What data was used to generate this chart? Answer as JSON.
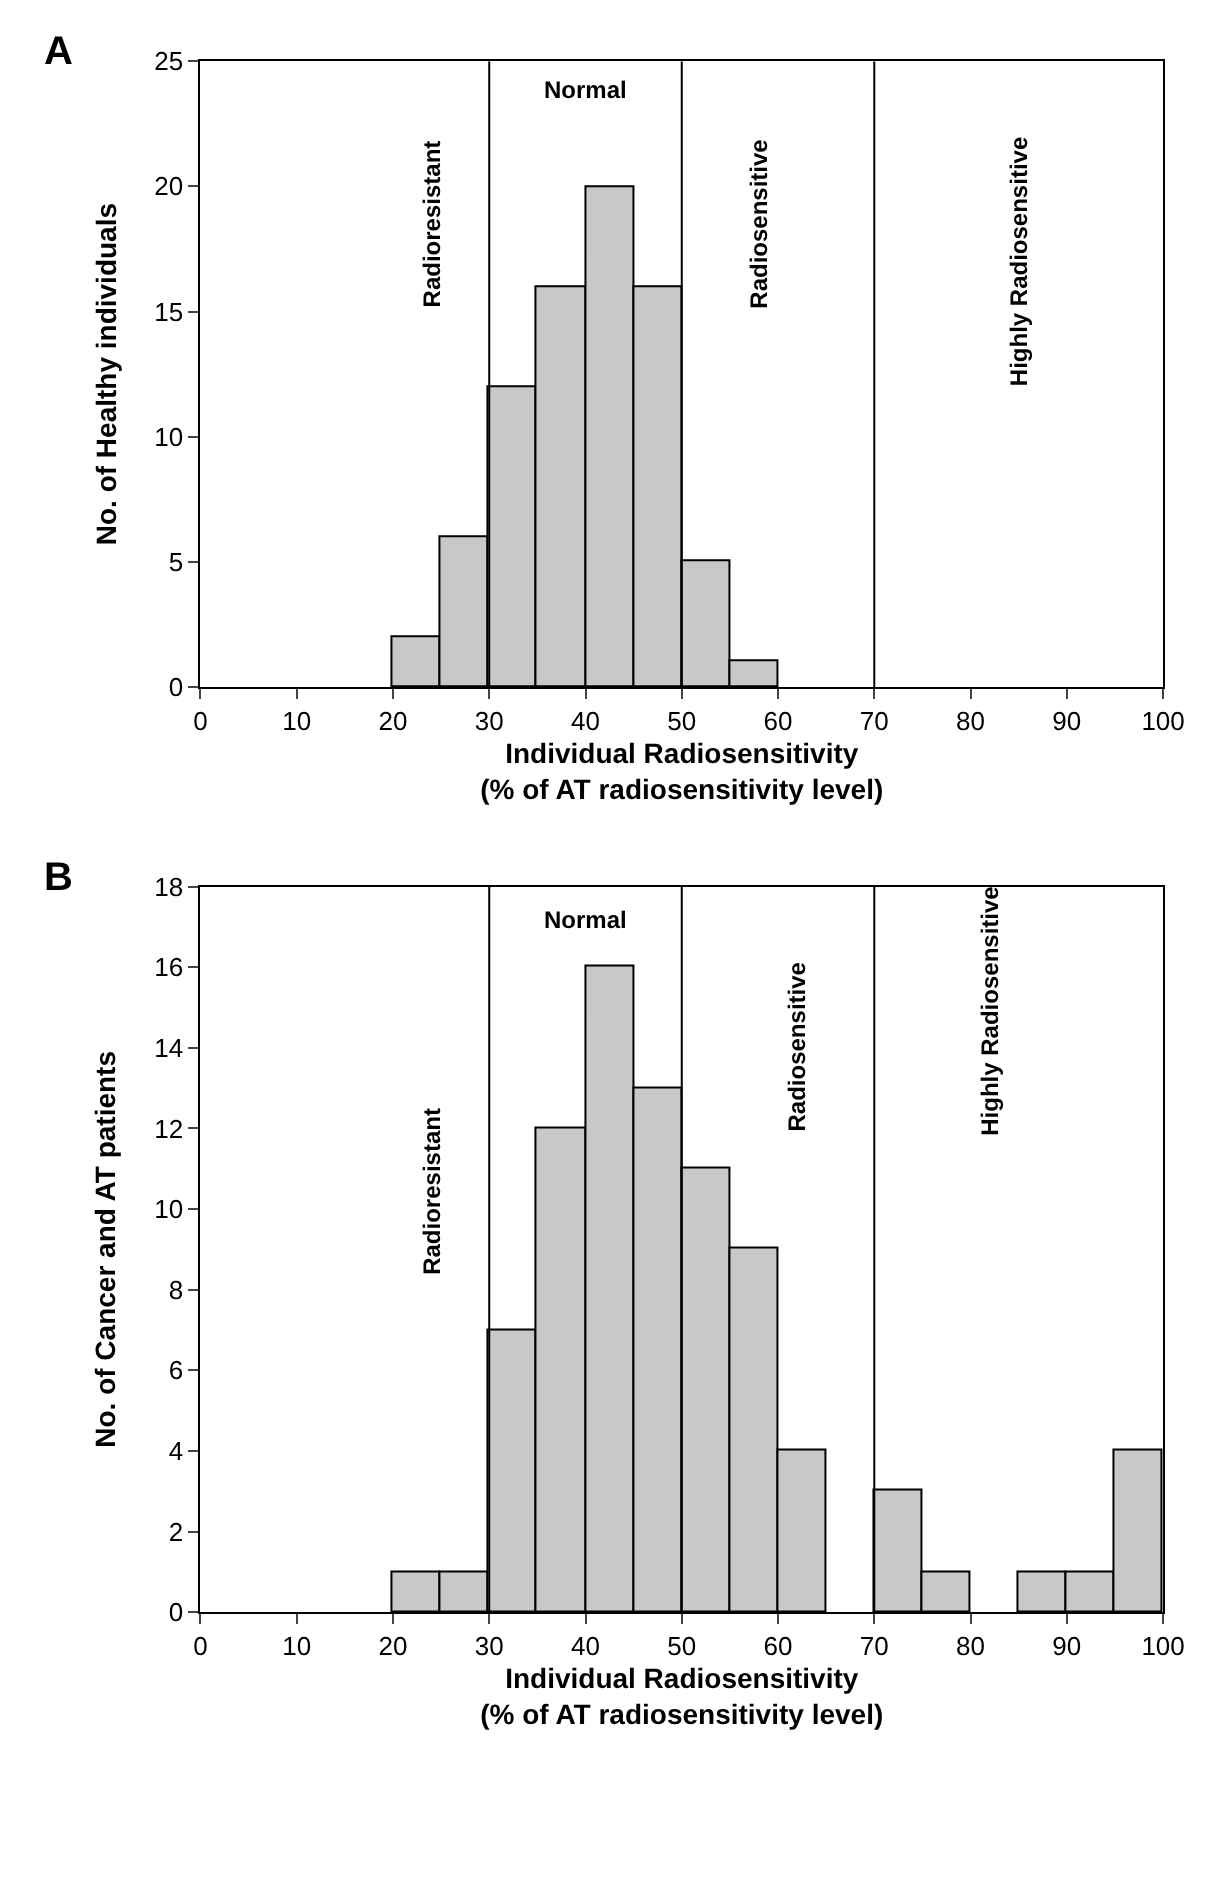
{
  "chart_data": [
    {
      "type": "histogram",
      "title": "A",
      "xlabel": "Individual Radiosensitivity\n(% of AT radiosensitivity level)",
      "ylabel": "No. of Healthy individuals",
      "color": "#c8c8c8",
      "bins": [
        0,
        5,
        10,
        15,
        20,
        25,
        30,
        35,
        40,
        45,
        50,
        55,
        60,
        65,
        70,
        75,
        80,
        85,
        90,
        95,
        100
      ],
      "values": [
        0,
        0,
        0,
        0,
        2,
        6,
        12,
        16,
        20,
        16,
        5,
        1,
        0,
        0,
        0,
        0,
        0,
        0,
        0,
        0
      ],
      "xlim": [
        0,
        100
      ],
      "xticks": [
        0,
        10,
        20,
        30,
        40,
        50,
        60,
        70,
        80,
        90,
        100
      ],
      "ylim": [
        0,
        25
      ],
      "yticks": [
        0,
        5,
        10,
        15,
        20,
        25
      ],
      "ref_lines": [
        {
          "axis": "x",
          "value": 30,
          "color": "#000000"
        },
        {
          "axis": "x",
          "value": 50,
          "color": "#000000"
        },
        {
          "axis": "x",
          "value": 70,
          "color": "#000000"
        }
      ],
      "annotations": [
        "Radioresistant",
        "Normal",
        "Radiosensitive",
        "Highly Radiosensitive"
      ]
    },
    {
      "type": "histogram",
      "title": "B",
      "xlabel": "Individual Radiosensitivity\n(% of AT radiosensitivity level)",
      "ylabel": "No. of Cancer and AT patients",
      "color": "#c8c8c8",
      "bins": [
        0,
        5,
        10,
        15,
        20,
        25,
        30,
        35,
        40,
        45,
        50,
        55,
        60,
        65,
        70,
        75,
        80,
        85,
        90,
        95,
        100
      ],
      "values": [
        0,
        0,
        0,
        0,
        1,
        1,
        7,
        12,
        16,
        13,
        11,
        9,
        4,
        0,
        3,
        1,
        0,
        1,
        1,
        4
      ],
      "xlim": [
        0,
        100
      ],
      "xticks": [
        0,
        10,
        20,
        30,
        40,
        50,
        60,
        70,
        80,
        90,
        100
      ],
      "ylim": [
        0,
        18
      ],
      "yticks": [
        0,
        2,
        4,
        6,
        8,
        10,
        12,
        14,
        16,
        18
      ],
      "ref_lines": [
        {
          "axis": "x",
          "value": 30,
          "color": "#000000"
        },
        {
          "axis": "x",
          "value": 50,
          "color": "#000000"
        },
        {
          "axis": "x",
          "value": 70,
          "color": "#000000"
        }
      ],
      "annotations": [
        "Radioresistant",
        "Normal",
        "Radiosensitive",
        "Highly Radiosensitive"
      ]
    }
  ]
}
